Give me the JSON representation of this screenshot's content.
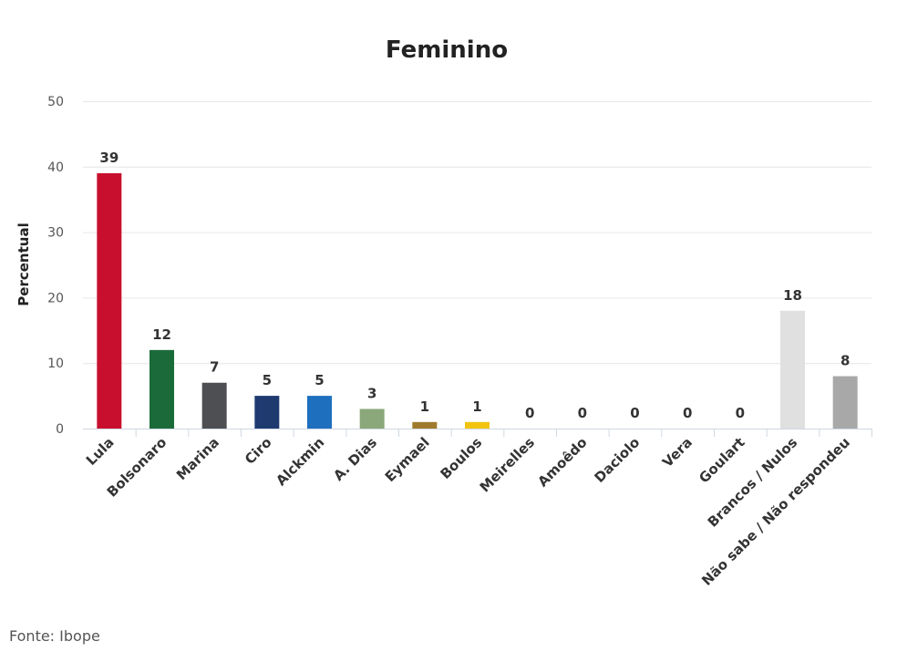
{
  "source": "Fonte: Ibope",
  "chart_data": {
    "type": "bar",
    "title": "Feminino",
    "xlabel": "",
    "ylabel": "Percentual",
    "ylim": [
      0,
      50
    ],
    "yticks": [
      0,
      10,
      20,
      30,
      40,
      50
    ],
    "grid": true,
    "categories": [
      "Lula",
      "Bolsonaro",
      "Marina",
      "Ciro",
      "Alckmin",
      "A. Dias",
      "Eymael",
      "Boulos",
      "Meirelles",
      "Amoêdo",
      "Daciolo",
      "Vera",
      "Goulart",
      "Brancos / Nulos",
      "Não sabe / Não respondeu"
    ],
    "values": [
      39,
      12,
      7,
      5,
      5,
      3,
      1,
      1,
      0,
      0,
      0,
      0,
      0,
      18,
      8
    ],
    "colors": [
      "#c8102e",
      "#1b6b3a",
      "#4d4f53",
      "#1f3a6f",
      "#1f6fbf",
      "#8aa87a",
      "#a07a2c",
      "#f2c40f",
      "#cccccc",
      "#cccccc",
      "#cccccc",
      "#cccccc",
      "#cccccc",
      "#e0e0e0",
      "#a8a8a8"
    ]
  }
}
